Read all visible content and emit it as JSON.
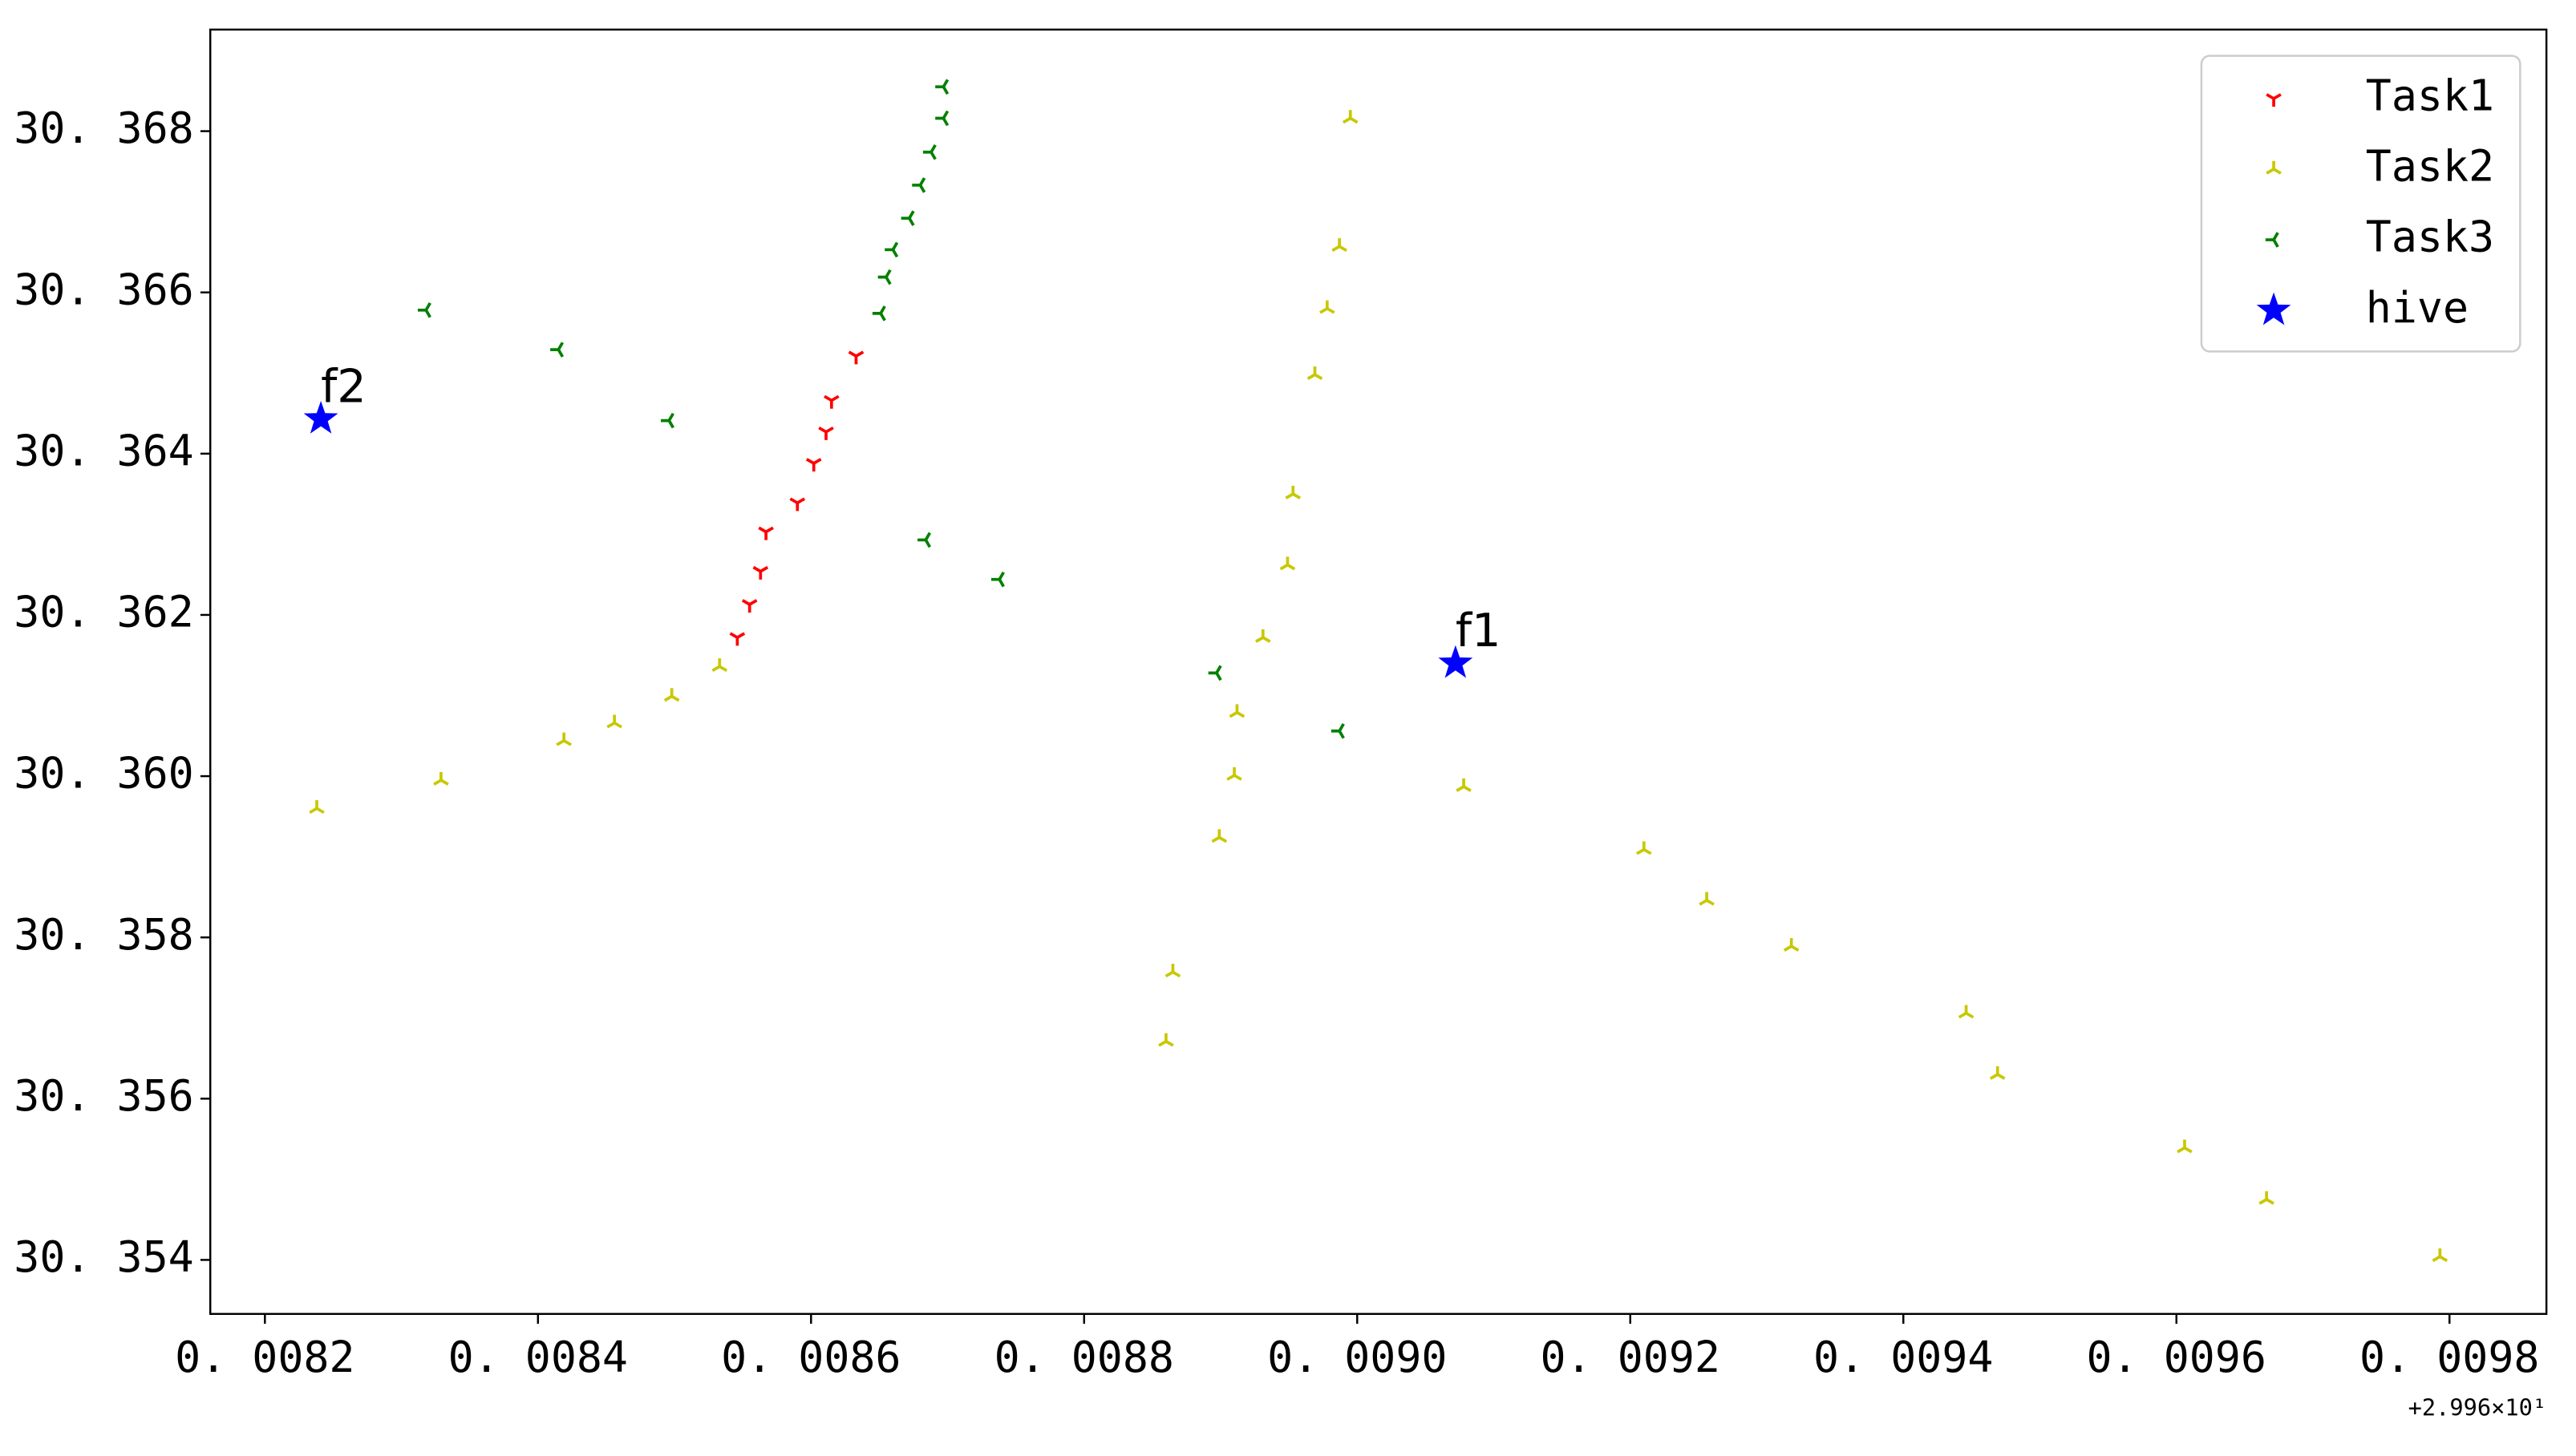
{
  "chart_data": {
    "type": "scatter",
    "xlim": [
      0.00816,
      0.009871
    ],
    "ylim": [
      30.35333,
      30.36926
    ],
    "xticks": [
      {
        "value": 0.0082,
        "label": "0. 0082"
      },
      {
        "value": 0.0084,
        "label": "0. 0084"
      },
      {
        "value": 0.0086,
        "label": "0. 0086"
      },
      {
        "value": 0.0088,
        "label": "0. 0088"
      },
      {
        "value": 0.009,
        "label": "0. 0090"
      },
      {
        "value": 0.0092,
        "label": "0. 0092"
      },
      {
        "value": 0.0094,
        "label": "0. 0094"
      },
      {
        "value": 0.0096,
        "label": "0. 0096"
      },
      {
        "value": 0.0098,
        "label": "0. 0098"
      }
    ],
    "yticks": [
      {
        "value": 30.354,
        "label": "30. 354"
      },
      {
        "value": 30.356,
        "label": "30. 356"
      },
      {
        "value": 30.358,
        "label": "30. 358"
      },
      {
        "value": 30.36,
        "label": "30. 360"
      },
      {
        "value": 30.362,
        "label": "30. 362"
      },
      {
        "value": 30.364,
        "label": "30. 364"
      },
      {
        "value": 30.366,
        "label": "30. 366"
      },
      {
        "value": 30.368,
        "label": "30. 368"
      }
    ],
    "x_offset_label": "+2.996×10¹",
    "legend": "upper right",
    "series": [
      {
        "name": "Task1",
        "color": "#ff0000",
        "marker": "tri_down",
        "x": [
          0.008633,
          0.008615,
          0.008611,
          0.008602,
          0.00859,
          0.008567,
          0.008563,
          0.008555,
          0.008546
        ],
        "y": [
          30.36521,
          30.36466,
          30.36427,
          30.36388,
          30.36339,
          30.36303,
          30.36254,
          30.36213,
          30.36172
        ]
      },
      {
        "name": "Task2",
        "color": "#c8c800",
        "marker": "tri_up",
        "x": [
          0.008995,
          0.008987,
          0.008978,
          0.008969,
          0.008953,
          0.008949,
          0.008931,
          0.008912,
          0.00891,
          0.008899,
          0.008865,
          0.00886,
          0.008533,
          0.008498,
          0.008456,
          0.008419,
          0.008329,
          0.008238,
          0.009078,
          0.00921,
          0.009256,
          0.009318,
          0.009446,
          0.009469,
          0.009606,
          0.009666,
          0.009793
        ],
        "y": [
          30.36816,
          30.36657,
          30.3658,
          30.36498,
          30.3635,
          30.36262,
          30.36172,
          30.36079,
          30.36001,
          30.35924,
          30.35757,
          30.35671,
          30.36136,
          30.36099,
          30.36066,
          30.36044,
          30.35995,
          30.3596,
          30.35987,
          30.35909,
          30.35846,
          30.35789,
          30.35706,
          30.3563,
          30.35539,
          30.35475,
          30.35404
        ]
      },
      {
        "name": "Task3",
        "color": "#008000",
        "marker": "tri_left",
        "x": [
          0.008697,
          0.008697,
          0.008688,
          0.00868,
          0.008672,
          0.00866,
          0.008655,
          0.008651,
          0.008684,
          0.008738,
          0.008318,
          0.008415,
          0.008496,
          0.008897,
          0.008987
        ],
        "y": [
          30.36855,
          30.36816,
          30.36774,
          30.36733,
          30.36692,
          30.36653,
          30.36619,
          30.36574,
          30.36293,
          30.36244,
          30.36578,
          30.36529,
          30.36441,
          30.36128,
          30.36056
        ]
      },
      {
        "name": "hive",
        "color": "#0000ff",
        "marker": "star",
        "x": [
          0.009072,
          0.008241
        ],
        "y": [
          30.3614,
          30.36443
        ],
        "labels": [
          "f1",
          "f2"
        ]
      }
    ]
  }
}
